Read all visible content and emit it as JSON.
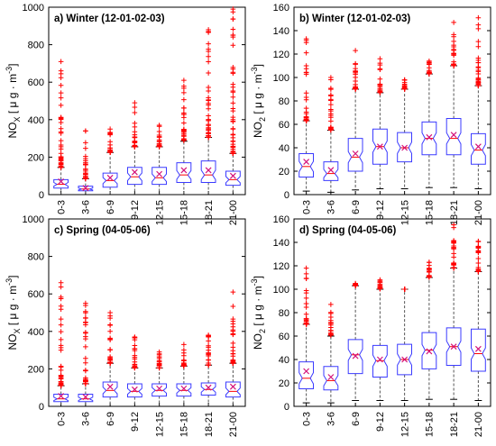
{
  "colors": {
    "box": "#3b3bff",
    "median": "#ff0000",
    "outlier": "#ff0000",
    "mean": "#d4127a",
    "whisker": "#555555"
  },
  "chart_data": [
    {
      "type": "box",
      "panel_label": "a)  Winter (12-01-02-03)",
      "ylabel_main": "NO",
      "ylabel_sub": "X",
      "ylabel_unit": " [ μ g · m",
      "ylabel_exp": "-3",
      "ylabel_close": "]",
      "ylim": [
        0,
        1000
      ],
      "yticks": [
        "0",
        "200",
        "400",
        "600",
        "800",
        "1000"
      ],
      "categories": [
        "0-3",
        "3-6",
        "6-9",
        "9-12",
        "12-15",
        "15-18",
        "18-21",
        "21-00"
      ],
      "whisker_low": [
        0,
        0,
        0,
        0,
        0,
        0,
        0,
        0
      ],
      "q1": [
        35,
        20,
        40,
        55,
        55,
        65,
        65,
        50
      ],
      "median": [
        55,
        30,
        75,
        95,
        90,
        105,
        105,
        80
      ],
      "q3": [
        80,
        45,
        115,
        145,
        145,
        170,
        180,
        125
      ],
      "whisker_high": [
        145,
        85,
        225,
        255,
        255,
        285,
        305,
        220
      ],
      "mean": [
        70,
        35,
        90,
        120,
        110,
        130,
        130,
        100
      ],
      "outlier_max": [
        710,
        340,
        350,
        490,
        370,
        610,
        880,
        990
      ]
    },
    {
      "type": "box",
      "panel_label": "b)  Winter (12-01-02-03)",
      "ylabel_main": "NO",
      "ylabel_sub": "2",
      "ylabel_unit": " [ μ g · m",
      "ylabel_exp": "-3",
      "ylabel_close": "]",
      "ylim": [
        0,
        160
      ],
      "yticks": [
        "0",
        "20",
        "40",
        "60",
        "80",
        "100",
        "120",
        "140",
        "160"
      ],
      "categories": [
        "0-3",
        "3-6",
        "6-9",
        "9-12",
        "12-15",
        "15-18",
        "18-21",
        "21-00"
      ],
      "whisker_low": [
        3,
        2,
        4,
        5,
        5,
        6,
        6,
        5
      ],
      "q1": [
        15,
        12,
        20,
        26,
        28,
        34,
        34,
        26
      ],
      "median": [
        24,
        18,
        32,
        41,
        40,
        48,
        48,
        38
      ],
      "q3": [
        35,
        28,
        48,
        56,
        53,
        62,
        65,
        52
      ],
      "whisker_high": [
        63,
        55,
        90,
        87,
        90,
        103,
        110,
        93
      ],
      "mean": [
        28,
        21,
        35,
        41,
        40,
        49,
        51,
        41
      ],
      "outlier_max": [
        133,
        100,
        123,
        116,
        98,
        114,
        147,
        151
      ]
    },
    {
      "type": "box",
      "panel_label": "c)  Spring (04-05-06)",
      "ylabel_main": "NO",
      "ylabel_sub": "X",
      "ylabel_unit": " [ μ g · m",
      "ylabel_exp": "-3",
      "ylabel_close": "]",
      "ylim": [
        0,
        1000
      ],
      "yticks": [
        "0",
        "200",
        "400",
        "600",
        "800",
        "1000"
      ],
      "categories": [
        "0-3",
        "3-6",
        "6-9",
        "9-12",
        "12-15",
        "15-18",
        "18-21",
        "21-00"
      ],
      "whisker_low": [
        0,
        0,
        0,
        0,
        0,
        0,
        0,
        0
      ],
      "q1": [
        25,
        25,
        50,
        50,
        55,
        55,
        60,
        50
      ],
      "median": [
        40,
        40,
        85,
        80,
        85,
        85,
        90,
        80
      ],
      "q3": [
        65,
        65,
        130,
        120,
        120,
        120,
        125,
        130
      ],
      "whisker_high": [
        110,
        120,
        230,
        205,
        205,
        215,
        220,
        230
      ],
      "mean": [
        55,
        50,
        105,
        90,
        95,
        95,
        100,
        105
      ],
      "outlier_max": [
        660,
        550,
        500,
        370,
        290,
        330,
        380,
        610
      ]
    },
    {
      "type": "box",
      "panel_label": "d)  Spring (04-05-06)",
      "ylabel_main": "NO",
      "ylabel_sub": "2",
      "ylabel_unit": " [ μ g · m",
      "ylabel_exp": "-3",
      "ylabel_close": "]",
      "ylim": [
        0,
        160
      ],
      "yticks": [
        "0",
        "20",
        "40",
        "60",
        "80",
        "100",
        "120",
        "140",
        "160"
      ],
      "categories": [
        "0-3",
        "3-6",
        "6-9",
        "9-12",
        "12-15",
        "15-18",
        "18-21",
        "21-00"
      ],
      "whisker_low": [
        3,
        3,
        5,
        5,
        5,
        6,
        6,
        5
      ],
      "q1": [
        15,
        14,
        28,
        25,
        27,
        32,
        35,
        30
      ],
      "median": [
        24,
        22,
        44,
        39,
        40,
        48,
        51,
        45
      ],
      "q3": [
        38,
        34,
        57,
        52,
        53,
        63,
        67,
        66
      ],
      "whisker_high": [
        70,
        60,
        103,
        100,
        100,
        110,
        118,
        115
      ],
      "mean": [
        30,
        25,
        43,
        40,
        40,
        47,
        51,
        49
      ],
      "outlier_max": [
        118,
        87,
        105,
        108,
        100,
        123,
        155,
        141
      ]
    }
  ]
}
